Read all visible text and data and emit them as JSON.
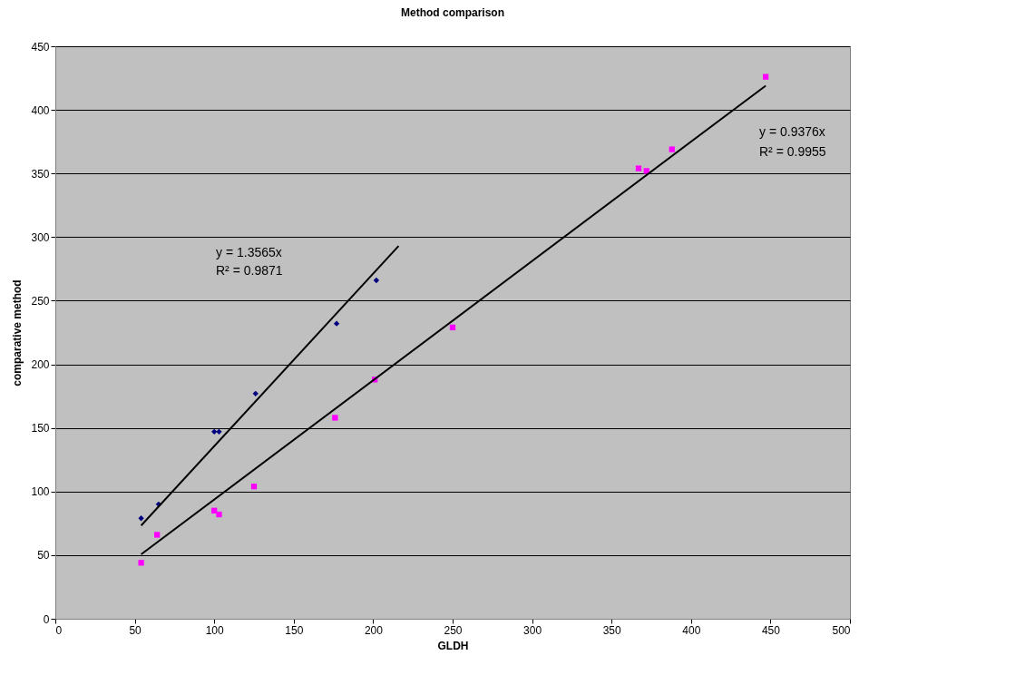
{
  "chart_data": {
    "type": "scatter",
    "title": "Method comparison",
    "xlabel": "GLDH",
    "ylabel": "comparative method",
    "xlim": [
      0,
      500
    ],
    "xticks": [
      0,
      50,
      100,
      150,
      200,
      250,
      300,
      350,
      400,
      450,
      500
    ],
    "ylim": [
      0,
      450
    ],
    "yticks": [
      0,
      50,
      100,
      150,
      200,
      250,
      300,
      350,
      400,
      450
    ],
    "grid": "y",
    "legend": false,
    "series": [
      {
        "marker": "diamond",
        "color": "#000080",
        "x": [
          54,
          65,
          100,
          103,
          126,
          177,
          202
        ],
        "values": [
          79,
          90,
          147,
          147,
          177,
          232,
          266
        ]
      },
      {
        "marker": "square",
        "color": "#ff00ff",
        "x": [
          54,
          64,
          100,
          103,
          125,
          176,
          201,
          250,
          367,
          372,
          388,
          447
        ],
        "values": [
          44,
          66,
          85,
          82,
          104,
          158,
          188,
          229,
          354,
          352,
          369,
          426
        ]
      },
      {
        "type": "line",
        "marker": "none",
        "color": "#000000",
        "x": [
          54,
          216
        ],
        "values": [
          73.3,
          293
        ]
      },
      {
        "type": "line",
        "marker": "none",
        "color": "#000000",
        "x": [
          54,
          447
        ],
        "values": [
          50.6,
          419
        ]
      }
    ],
    "annotations": [
      "y = 1.3565x",
      "R² = 0.9871",
      "y = 0.9376x",
      "R² = 0.9955"
    ]
  }
}
